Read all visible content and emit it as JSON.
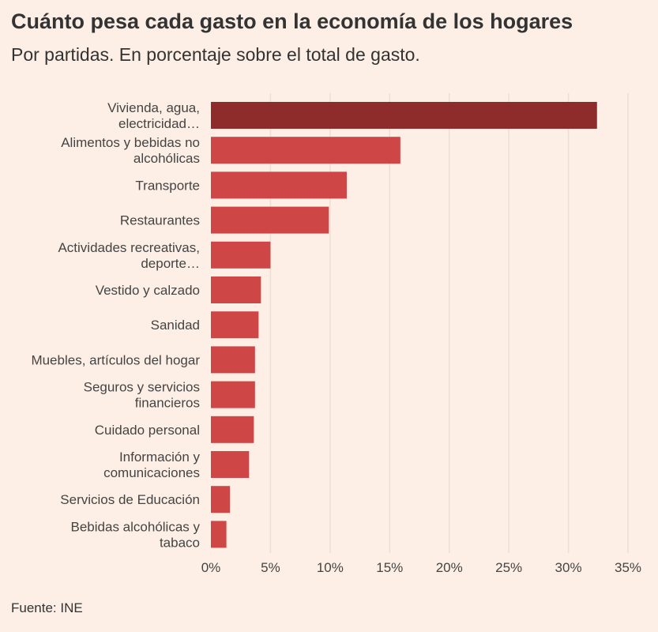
{
  "header": {
    "title": "Cuánto pesa cada gasto en la economía de los hogares",
    "subtitle": "Por partidas. En porcentaje sobre el total de gasto."
  },
  "footer": {
    "source": "Fuente: INE"
  },
  "colors": {
    "highlight": "#8e2b2b",
    "bar": "#cf4646",
    "grid": "#eadfd6"
  },
  "chart_data": {
    "type": "bar",
    "orientation": "horizontal",
    "categories": [
      "Vivienda, agua, electricidad…",
      "Alimentos y bebidas no alcohólicas",
      "Transporte",
      "Restaurantes",
      "Actividades recreativas, deporte…",
      "Vestido y calzado",
      "Sanidad",
      "Muebles, artículos del hogar",
      "Seguros y servicios financieros",
      "Cuidado personal",
      "Información y comunicaciones",
      "Servicios de Educación",
      "Bebidas alcohólicas y tabaco"
    ],
    "label_lines": [
      [
        "Vivienda, agua,",
        "electricidad…"
      ],
      [
        "Alimentos y bebidas no",
        "alcohólicas"
      ],
      [
        "Transporte"
      ],
      [
        "Restaurantes"
      ],
      [
        "Actividades recreativas,",
        "deporte…"
      ],
      [
        "Vestido y calzado"
      ],
      [
        "Sanidad"
      ],
      [
        "Muebles, artículos del hogar"
      ],
      [
        "Seguros y servicios",
        "financieros"
      ],
      [
        "Cuidado personal"
      ],
      [
        "Información y",
        "comunicaciones"
      ],
      [
        "Servicios de Educación"
      ],
      [
        "Bebidas alcohólicas y",
        "tabaco"
      ]
    ],
    "values": [
      32.4,
      15.9,
      11.4,
      9.9,
      5.0,
      4.2,
      4.0,
      3.7,
      3.7,
      3.6,
      3.2,
      1.6,
      1.3
    ],
    "xlim": [
      0,
      35
    ],
    "xticks": [
      0,
      5,
      10,
      15,
      20,
      25,
      30,
      35
    ],
    "xtick_labels": [
      "0%",
      "5%",
      "10%",
      "15%",
      "20%",
      "25%",
      "30%",
      "35%"
    ],
    "grid": true,
    "highlight_index": 0
  }
}
